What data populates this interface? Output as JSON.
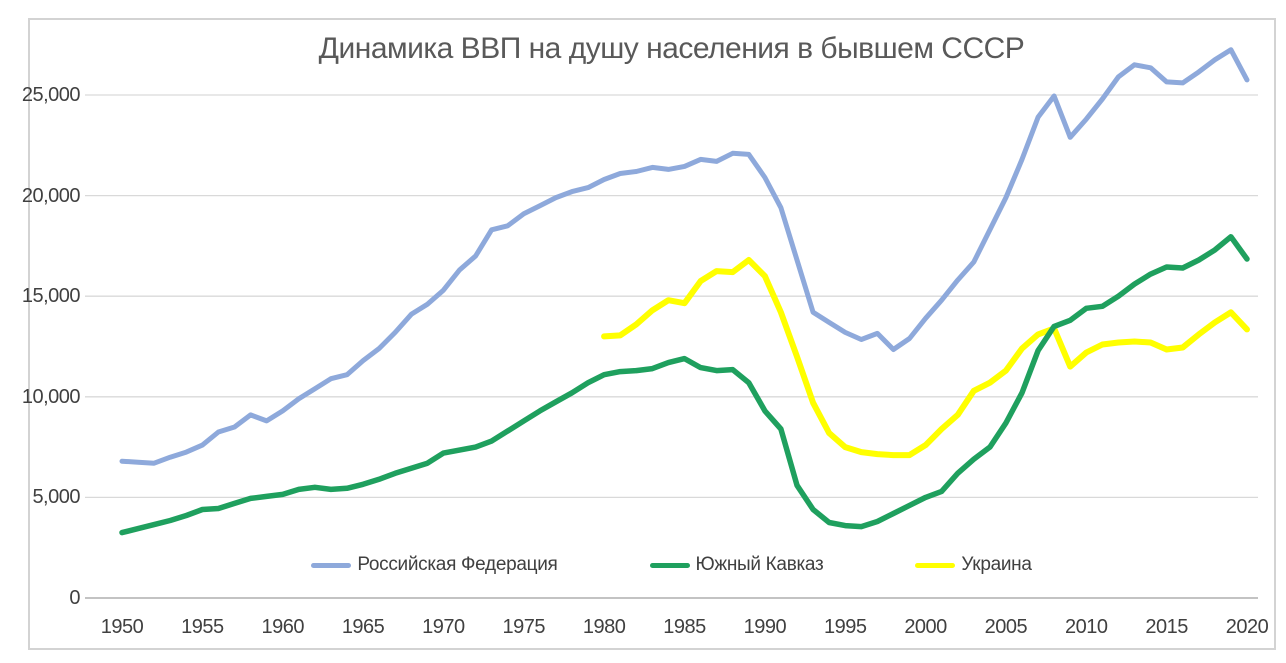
{
  "chart": {
    "title": "Динамика ВВП на душу населения в бывшем СССР"
  },
  "colors": {
    "background": "#ffffff",
    "chart_border": "#d3d3d3",
    "gridline": "#d9d9d9",
    "zero_axis_line": "#c3c3c3",
    "title_text": "#595959",
    "axis_text": "#404040",
    "legend_text": "#404040",
    "series_russia": "#8EA9DB",
    "series_caucasus": "#1FA05E",
    "series_ukraine": "#FFFF00"
  },
  "chart_data": {
    "type": "line",
    "title": "Динамика ВВП на душу населения в бывшем СССР",
    "xlabel": "",
    "ylabel": "",
    "grid": true,
    "legend_position": "bottom",
    "x_axis": {
      "range": [
        1950,
        2020
      ],
      "ticks": [
        1950,
        1955,
        1960,
        1965,
        1970,
        1975,
        1980,
        1985,
        1990,
        1995,
        2000,
        2005,
        2010,
        2015,
        2020
      ]
    },
    "y_axis": {
      "range": [
        0,
        27500
      ],
      "ticks": [
        {
          "value": 0,
          "label": "0"
        },
        {
          "value": 5000,
          "label": "5,000"
        },
        {
          "value": 10000,
          "label": "10,000"
        },
        {
          "value": 15000,
          "label": "15,000"
        },
        {
          "value": 20000,
          "label": "20,000"
        },
        {
          "value": 25000,
          "label": "25,000"
        }
      ]
    },
    "series": [
      {
        "name": "Российская Федерация",
        "color": "#8EA9DB",
        "start_year": 1950,
        "values": [
          6800,
          6750,
          6700,
          7000,
          7250,
          7600,
          8250,
          8500,
          9100,
          8800,
          9300,
          9900,
          10400,
          10900,
          11100,
          11800,
          12400,
          13200,
          14100,
          14600,
          15300,
          16300,
          17000,
          18300,
          18500,
          19100,
          19500,
          19900,
          20200,
          20400,
          20800,
          21100,
          21200,
          21400,
          21300,
          21450,
          21800,
          21700,
          22100,
          22050,
          20900,
          19400,
          16800,
          14200,
          13700,
          13200,
          12850,
          13150,
          12350,
          12900,
          13900,
          14800,
          15800,
          16700,
          18300,
          19900,
          21800,
          23900,
          24950,
          22900,
          23800,
          24800,
          25900,
          26500,
          26350,
          25650,
          25600,
          26150,
          26750,
          27250,
          25750
        ]
      },
      {
        "name": "Южный Кавказ",
        "color": "#1FA05E",
        "start_year": 1950,
        "values": [
          3250,
          3450,
          3650,
          3850,
          4100,
          4400,
          4450,
          4700,
          4950,
          5050,
          5150,
          5400,
          5500,
          5400,
          5450,
          5650,
          5900,
          6200,
          6450,
          6700,
          7200,
          7350,
          7500,
          7800,
          8300,
          8800,
          9300,
          9750,
          10200,
          10700,
          11100,
          11250,
          11300,
          11400,
          11700,
          11900,
          11450,
          11300,
          11350,
          10700,
          9300,
          8400,
          5600,
          4400,
          3750,
          3600,
          3550,
          3800,
          4200,
          4600,
          5000,
          5300,
          6200,
          6900,
          7500,
          8700,
          10200,
          12300,
          13500,
          13800,
          14400,
          14500,
          15000,
          15600,
          16100,
          16450,
          16400,
          16800,
          17300,
          17950,
          16850
        ]
      },
      {
        "name": "Украина",
        "color": "#FFFF00",
        "start_year": 1980,
        "values": [
          13000,
          13050,
          13600,
          14300,
          14800,
          14650,
          15750,
          16250,
          16200,
          16800,
          16000,
          14200,
          12000,
          9700,
          8200,
          7500,
          7250,
          7150,
          7100,
          7100,
          7600,
          8400,
          9100,
          10300,
          10700,
          11300,
          12400,
          13100,
          13400,
          11500,
          12200,
          12600,
          12700,
          12750,
          12700,
          12350,
          12450,
          13100,
          13700,
          14200,
          13350
        ]
      }
    ]
  }
}
